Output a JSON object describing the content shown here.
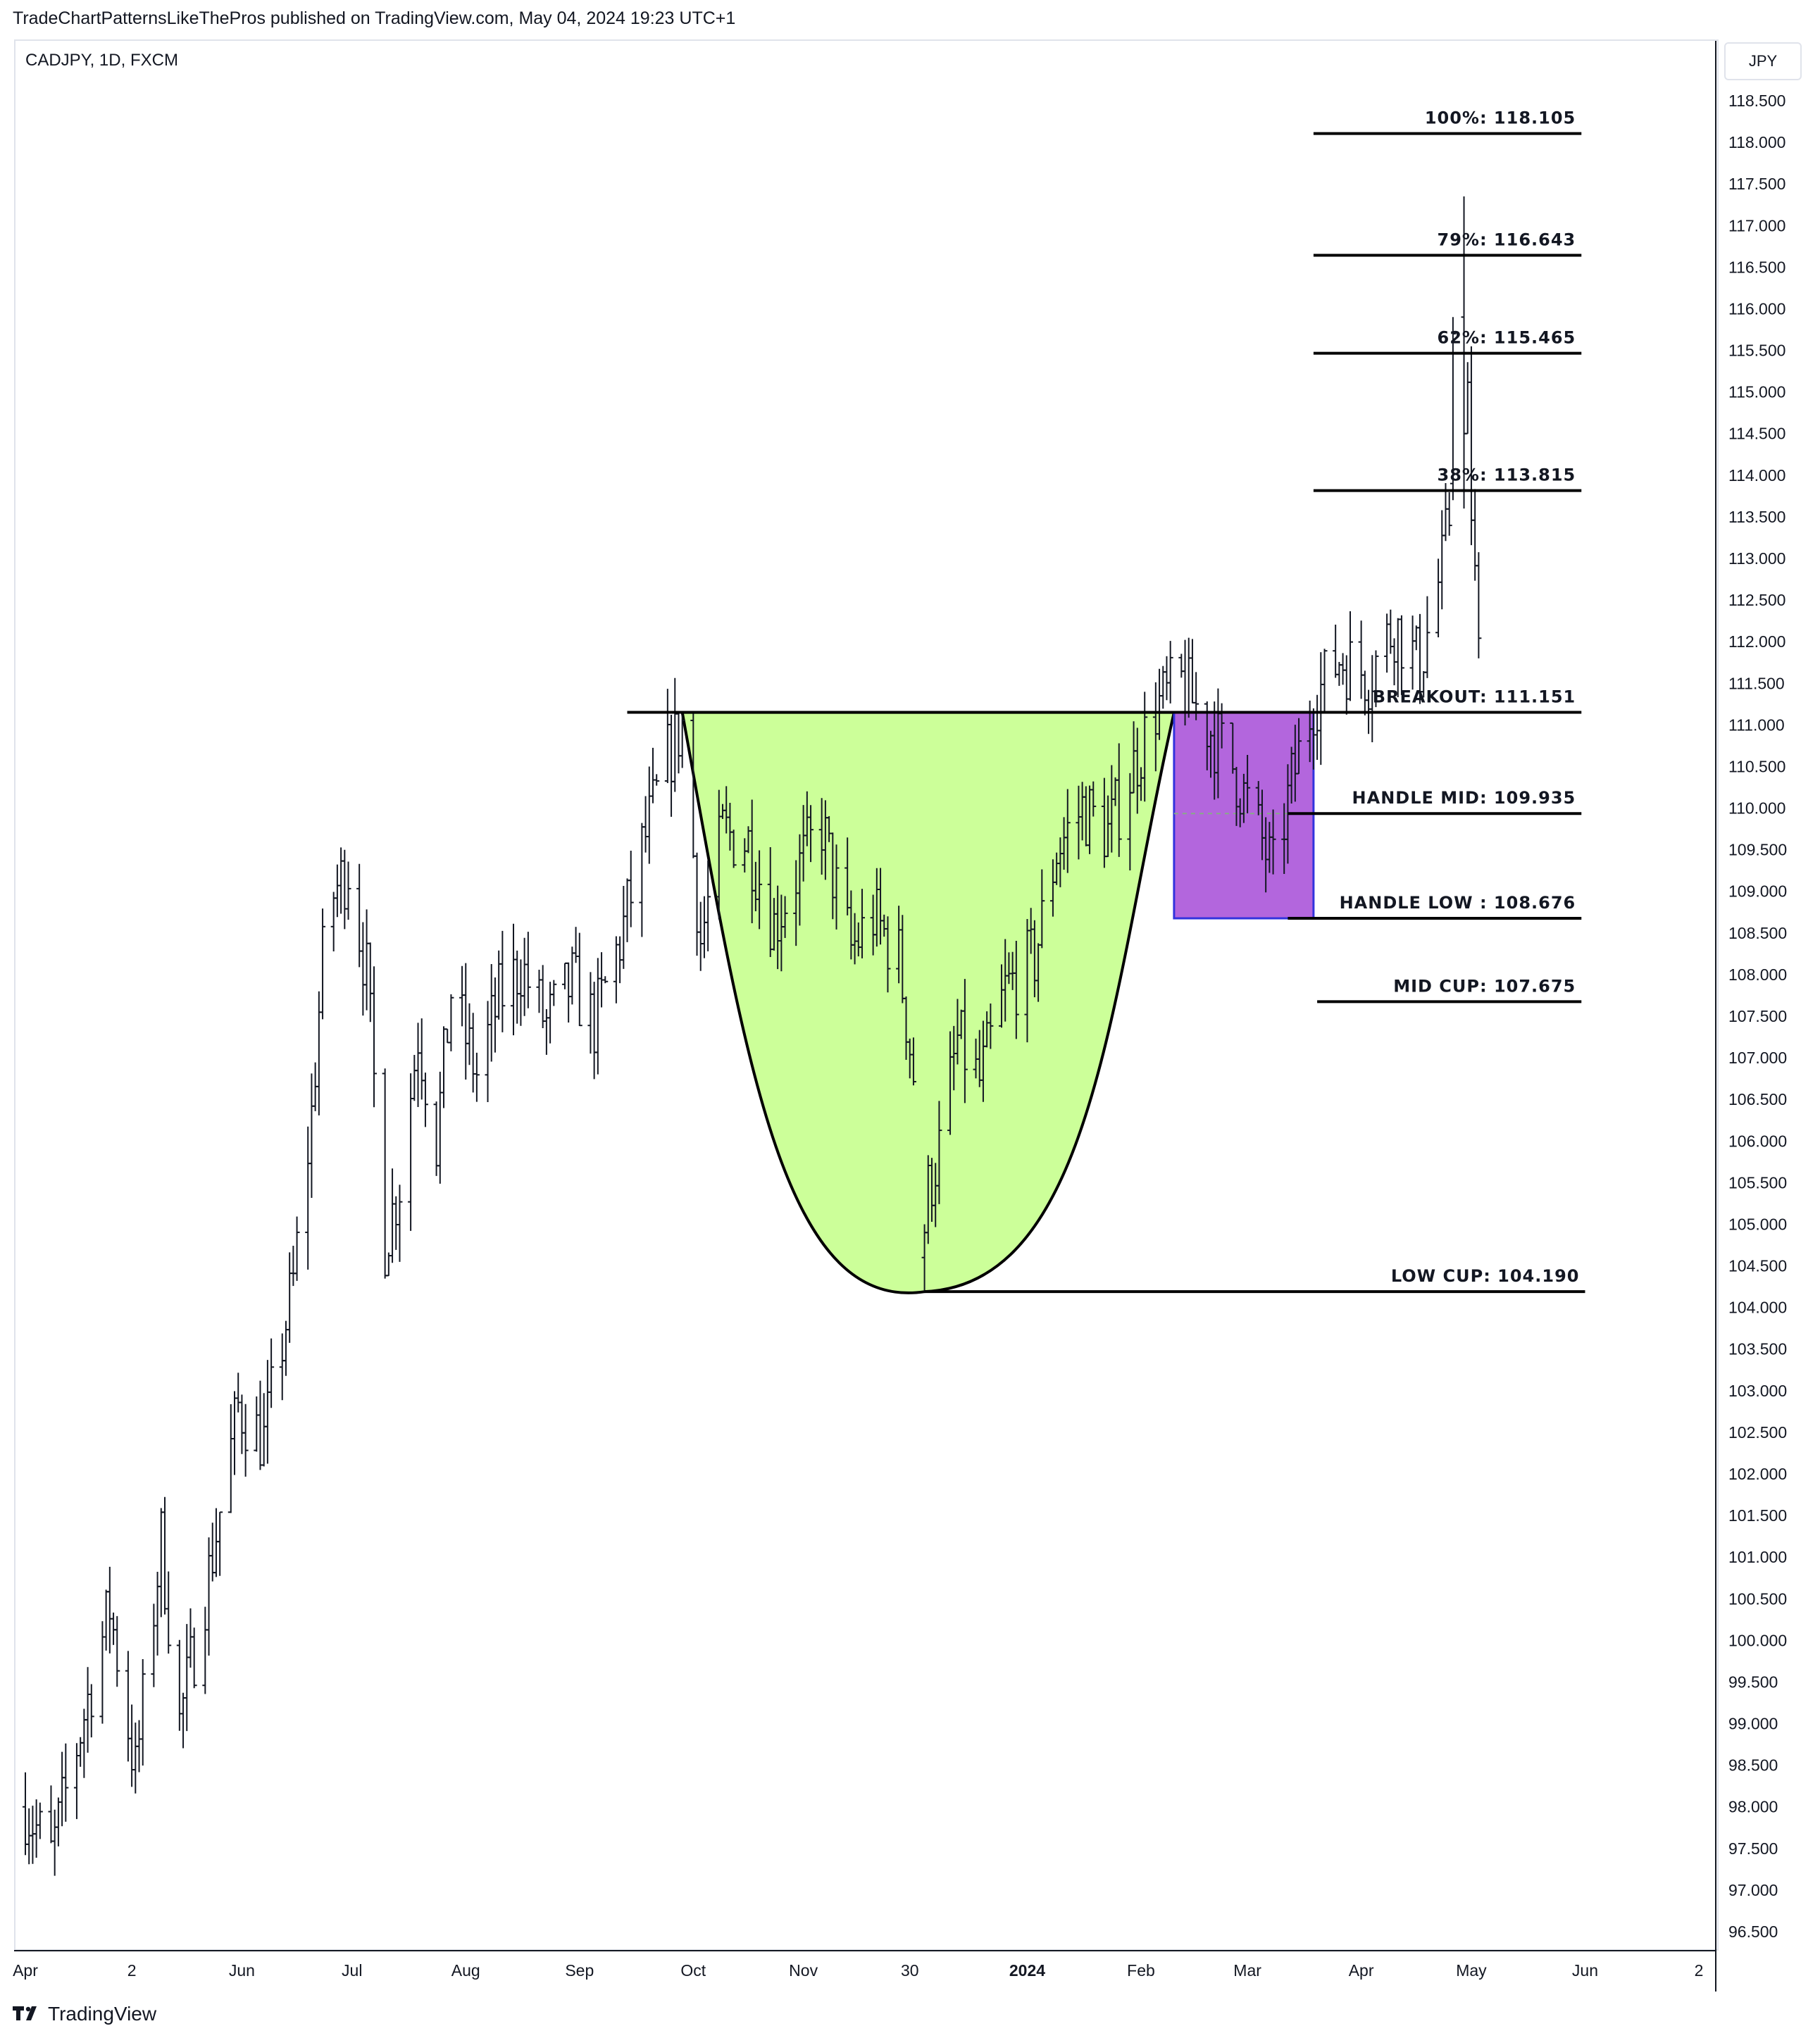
{
  "header": {
    "publisher_line": "TradeChartPatternsLikeThePros published on TradingView.com, May 04, 2024 19:23 UTC+1"
  },
  "chart_info": {
    "symbol_line": "CADJPY, 1D, FXCM",
    "currency": "JPY"
  },
  "footer": {
    "brand": "TradingView",
    "logo_icon": "tradingview-logo-icon"
  },
  "chart_data": {
    "type": "ohlc-bar",
    "title": "CADJPY, 1D, FXCM",
    "y_axis": {
      "side": "right",
      "ylim": [
        96.3,
        118.85
      ],
      "tick_labels": [
        "96.500",
        "97.000",
        "97.500",
        "98.000",
        "98.500",
        "99.000",
        "99.500",
        "100.000",
        "100.500",
        "101.000",
        "101.500",
        "102.000",
        "102.500",
        "103.000",
        "103.500",
        "104.000",
        "104.500",
        "105.000",
        "105.500",
        "106.000",
        "106.500",
        "107.000",
        "107.500",
        "108.000",
        "108.500",
        "109.000",
        "109.500",
        "110.000",
        "110.500",
        "111.000",
        "111.500",
        "112.000",
        "112.500",
        "113.000",
        "113.500",
        "114.000",
        "114.500",
        "115.000",
        "115.500",
        "116.000",
        "116.500",
        "117.000",
        "117.500",
        "118.000",
        "118.500"
      ]
    },
    "x_axis": {
      "tick_labels": [
        {
          "label": "Apr",
          "date": "2023-04-03",
          "bold": false
        },
        {
          "label": "2",
          "date": "2023-05-02",
          "bold": false
        },
        {
          "label": "Jun",
          "date": "2023-06-01",
          "bold": false
        },
        {
          "label": "Jul",
          "date": "2023-07-01",
          "bold": false
        },
        {
          "label": "Aug",
          "date": "2023-08-01",
          "bold": false
        },
        {
          "label": "Sep",
          "date": "2023-09-01",
          "bold": false
        },
        {
          "label": "Oct",
          "date": "2023-10-02",
          "bold": false
        },
        {
          "label": "Nov",
          "date": "2023-11-01",
          "bold": false
        },
        {
          "label": "30",
          "date": "2023-11-30",
          "bold": false
        },
        {
          "label": "2024",
          "date": "2024-01-01",
          "bold": true
        },
        {
          "label": "Feb",
          "date": "2024-02-01",
          "bold": false
        },
        {
          "label": "Mar",
          "date": "2024-03-01",
          "bold": false
        },
        {
          "label": "Apr",
          "date": "2024-04-01",
          "bold": false
        },
        {
          "label": "May",
          "date": "2024-05-01",
          "bold": false
        },
        {
          "label": "Jun",
          "date": "2024-06-01",
          "bold": false
        },
        {
          "label": "2",
          "date": "2024-07-02",
          "bold": false
        }
      ]
    },
    "price_path": [
      [
        "2023-04-03",
        98.0
      ],
      [
        "2023-04-10",
        97.4
      ],
      [
        "2023-04-20",
        99.3
      ],
      [
        "2023-04-26",
        100.4
      ],
      [
        "2023-05-03",
        98.4
      ],
      [
        "2023-05-10",
        101.2
      ],
      [
        "2023-05-15",
        99.0
      ],
      [
        "2023-05-23",
        100.8
      ],
      [
        "2023-05-31",
        102.8
      ],
      [
        "2023-06-07",
        102.4
      ],
      [
        "2023-06-15",
        104.3
      ],
      [
        "2023-06-20",
        106.3
      ],
      [
        "2023-06-24",
        108.8
      ],
      [
        "2023-06-30",
        109.3
      ],
      [
        "2023-07-05",
        108.0
      ],
      [
        "2023-07-10",
        104.8
      ],
      [
        "2023-07-14",
        105.5
      ],
      [
        "2023-07-19",
        107.3
      ],
      [
        "2023-07-24",
        106.0
      ],
      [
        "2023-07-28",
        107.8
      ],
      [
        "2023-08-04",
        106.8
      ],
      [
        "2023-08-10",
        107.7
      ],
      [
        "2023-08-16",
        108.1
      ],
      [
        "2023-08-23",
        107.4
      ],
      [
        "2023-08-30",
        107.9
      ],
      [
        "2023-09-05",
        107.4
      ],
      [
        "2023-09-12",
        108.4
      ],
      [
        "2023-09-18",
        109.5
      ],
      [
        "2023-09-25",
        110.6
      ],
      [
        "2023-09-29",
        111.0
      ],
      [
        "2023-10-04",
        108.4
      ],
      [
        "2023-10-10",
        109.7
      ],
      [
        "2023-10-17",
        109.6
      ],
      [
        "2023-10-24",
        108.6
      ],
      [
        "2023-10-31",
        109.3
      ],
      [
        "2023-11-06",
        109.8
      ],
      [
        "2023-11-10",
        109.0
      ],
      [
        "2023-11-14",
        108.3
      ],
      [
        "2023-11-20",
        108.7
      ],
      [
        "2023-11-27",
        108.2
      ],
      [
        "2023-12-01",
        106.8
      ],
      [
        "2023-12-05",
        105.4
      ],
      [
        "2023-12-08",
        105.9
      ],
      [
        "2023-12-13",
        107.2
      ],
      [
        "2023-12-19",
        106.7
      ],
      [
        "2023-12-26",
        107.8
      ],
      [
        "2024-01-03",
        108.2
      ],
      [
        "2024-01-09",
        109.5
      ],
      [
        "2024-01-16",
        110.0
      ],
      [
        "2024-01-23",
        109.7
      ],
      [
        "2024-01-30",
        110.5
      ],
      [
        "2024-02-05",
        111.2
      ],
      [
        "2024-02-12",
        111.5
      ],
      [
        "2024-02-19",
        111.0
      ],
      [
        "2024-02-26",
        110.5
      ],
      [
        "2024-03-05",
        109.6
      ],
      [
        "2024-03-08",
        109.2
      ],
      [
        "2024-03-13",
        110.3
      ],
      [
        "2024-03-19",
        111.3
      ],
      [
        "2024-03-26",
        111.8
      ],
      [
        "2024-04-03",
        111.6
      ],
      [
        "2024-04-10",
        112.2
      ],
      [
        "2024-04-17",
        111.7
      ],
      [
        "2024-04-23",
        112.9
      ],
      [
        "2024-04-26",
        113.8
      ],
      [
        "2024-04-29",
        116.0
      ],
      [
        "2024-05-01",
        113.6
      ],
      [
        "2024-05-03",
        111.8
      ]
    ],
    "annotated_bars": [
      {
        "date": "2023-12-04",
        "high": 105.0,
        "low": 104.19,
        "open": 104.6,
        "close": 104.9
      }
    ],
    "cup": {
      "fill": "#ccff99",
      "stroke": "#000000",
      "rim_left": {
        "date": "2023-09-29",
        "price": 111.15
      },
      "bottom": {
        "date": "2023-12-04",
        "price": 104.19
      },
      "rim_right": {
        "date": "2024-02-10",
        "price": 111.15
      }
    },
    "handle_box": {
      "fill": "#b366dd",
      "stroke": "#3333dd",
      "start": "2024-02-10",
      "end": "2024-03-19",
      "top": 111.151,
      "bottom": 108.676,
      "mid": 109.935
    },
    "levels": [
      {
        "label": "100%: 118.105",
        "price": 118.105,
        "start": "2024-03-19",
        "end": "2024-05-31"
      },
      {
        "label": "79%: 116.643",
        "price": 116.643,
        "start": "2024-03-19",
        "end": "2024-05-31"
      },
      {
        "label": "62%: 115.465",
        "price": 115.465,
        "start": "2024-03-19",
        "end": "2024-05-31"
      },
      {
        "label": "38%: 113.815",
        "price": 113.815,
        "start": "2024-03-19",
        "end": "2024-05-31"
      },
      {
        "label": "BREAKOUT: 111.151",
        "price": 111.151,
        "start": "2023-09-14",
        "end": "2024-05-31"
      },
      {
        "label": "HANDLE MID: 109.935",
        "price": 109.935,
        "start": "2024-03-12",
        "end": "2024-05-31"
      },
      {
        "label": "HANDLE LOW : 108.676",
        "price": 108.676,
        "start": "2024-03-12",
        "end": "2024-05-31"
      },
      {
        "label": "MID CUP: 107.675",
        "price": 107.675,
        "start": "2024-03-20",
        "end": "2024-05-31"
      },
      {
        "label": "LOW CUP: 104.190",
        "price": 104.19,
        "start": "2023-12-04",
        "end": "2024-06-01"
      }
    ]
  }
}
